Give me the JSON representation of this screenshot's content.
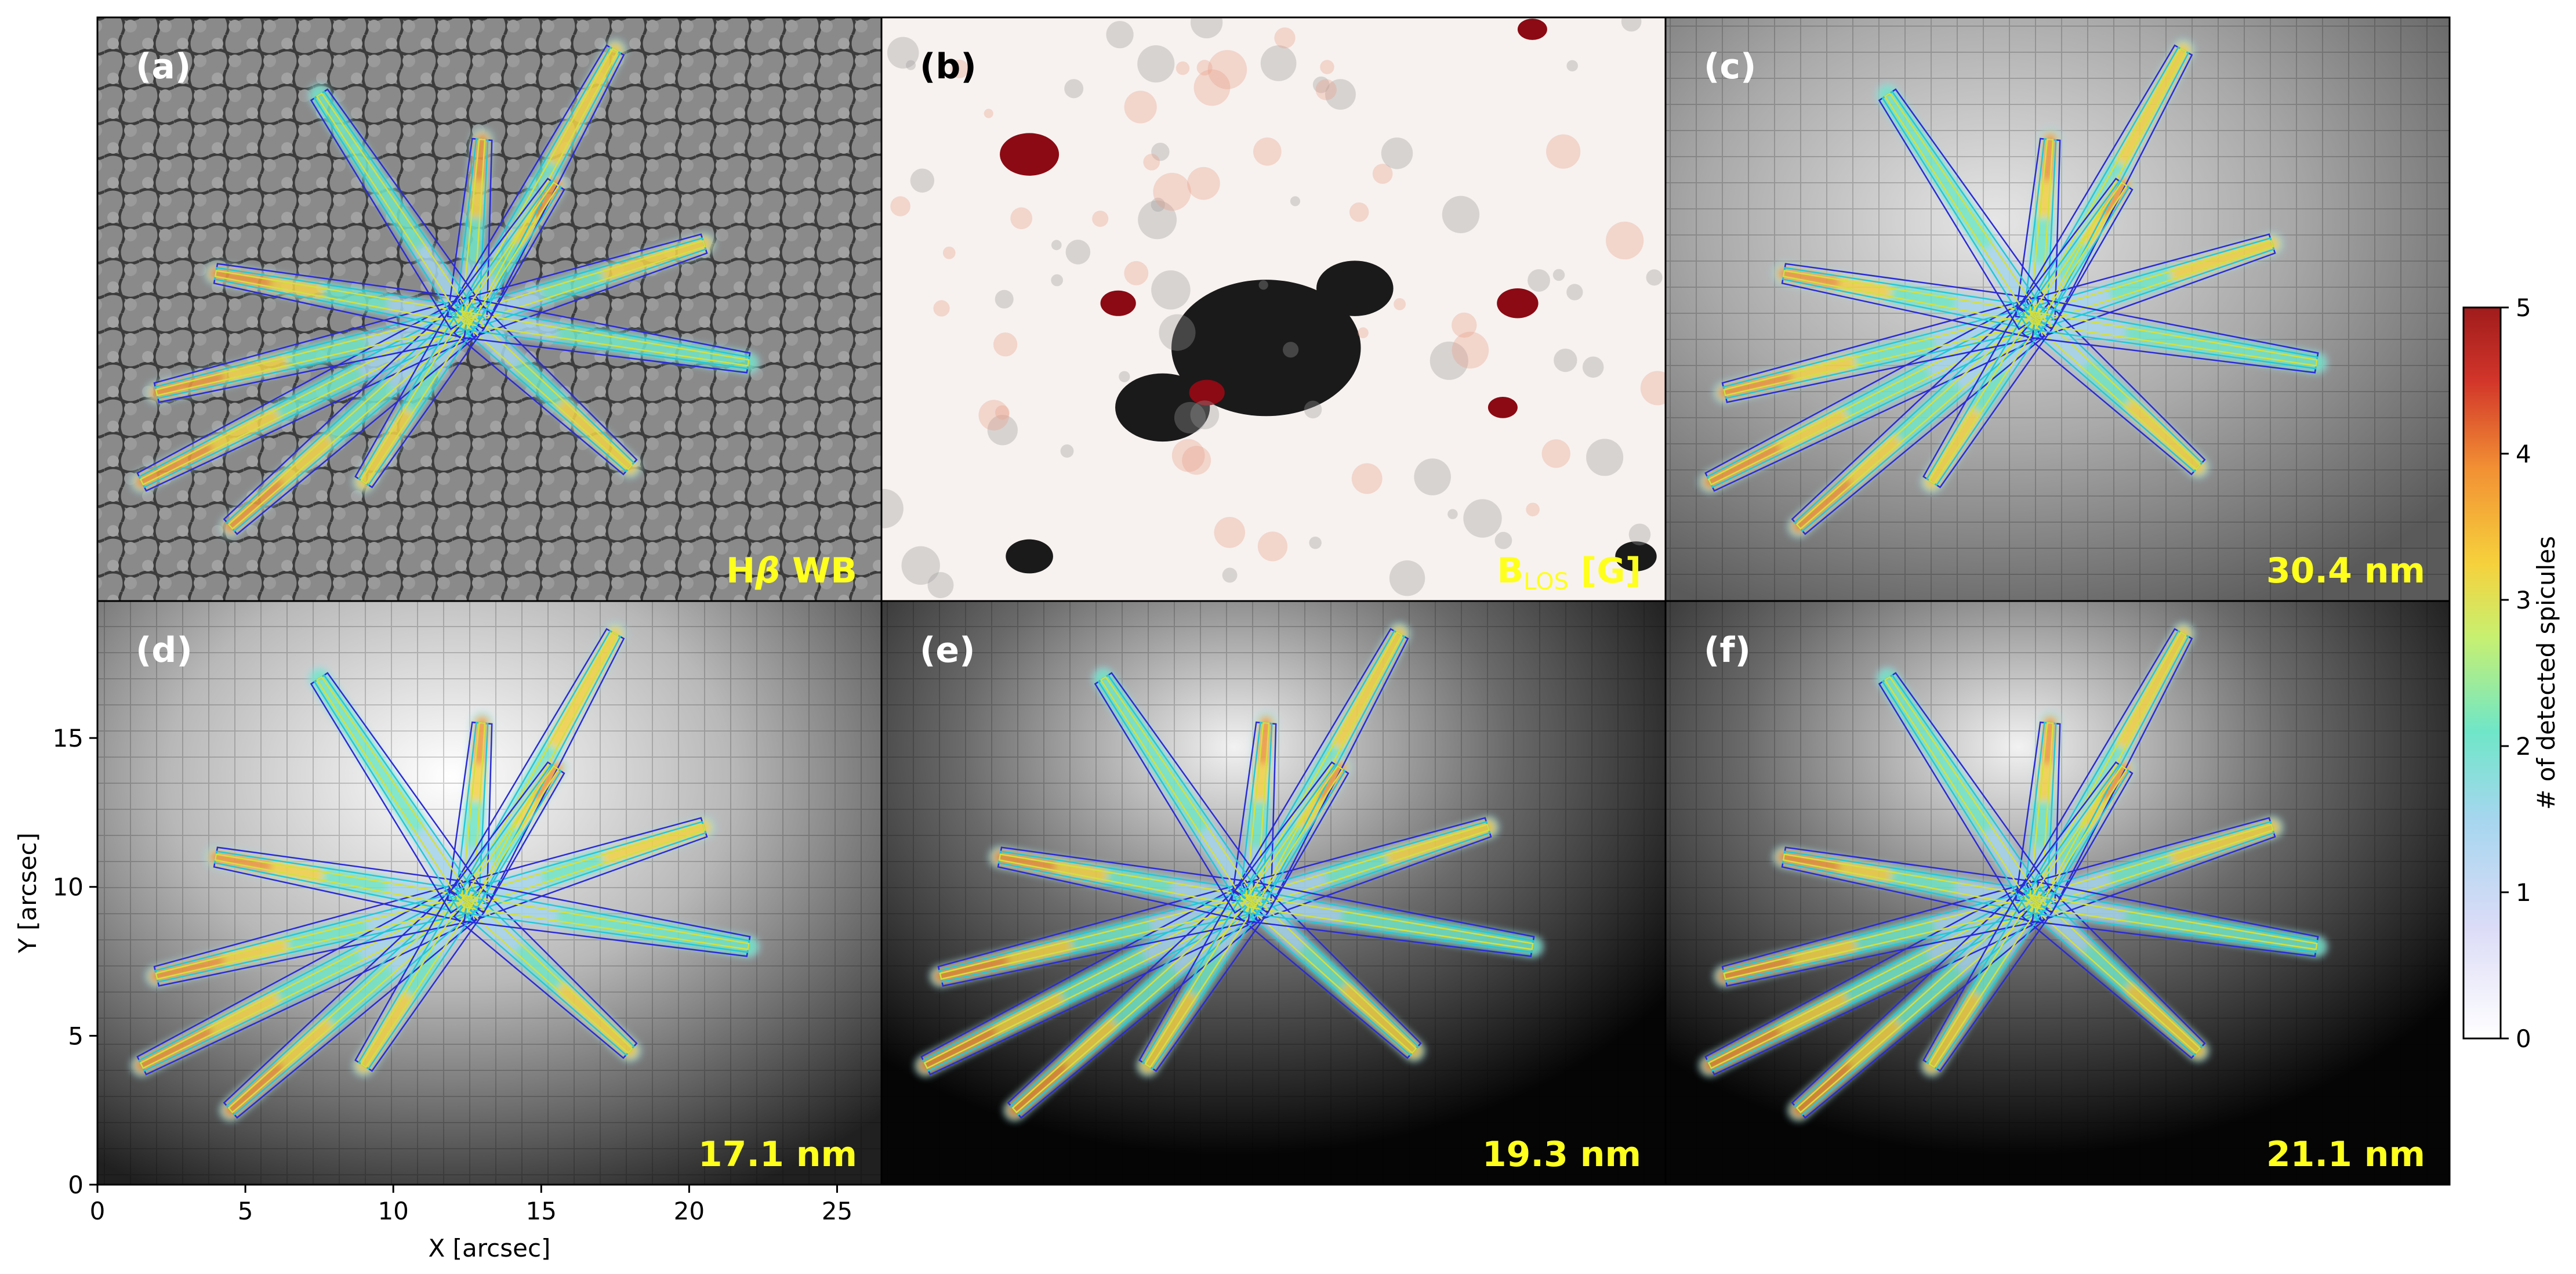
{
  "chart_data": {
    "type": "heatmap",
    "x_axis": {
      "label": "X [arcsec]",
      "ticks": [
        0,
        5,
        10,
        15,
        20,
        25
      ],
      "range": [
        0,
        26.5
      ]
    },
    "y_axis": {
      "label": "Y [arcsec]",
      "ticks": [
        0,
        5,
        10,
        15
      ],
      "range": [
        0,
        19.6
      ]
    },
    "colorbar": {
      "label": "# of detected spicules",
      "ticks": [
        0,
        1,
        2,
        3,
        4,
        5
      ],
      "range": [
        0,
        5
      ],
      "colors": [
        "#ffffff",
        "#dcdcf7",
        "#a6d6ef",
        "#6fe6c8",
        "#c8f070",
        "#f6d13c",
        "#f29034",
        "#d2352a",
        "#a01c1c"
      ]
    },
    "panels": [
      {
        "letter": "(a)",
        "tag": "Hβ WB",
        "tag_main": "H",
        "tag_greek": "β",
        "tag_tail": " WB",
        "background": "granulation",
        "contours": true
      },
      {
        "letter": "(b)",
        "tag": "B_LOS [G]",
        "tag_main": "B",
        "tag_sub": "LOS",
        "tag_tail": " [G]",
        "background": "magnetogram",
        "contours": false
      },
      {
        "letter": "(c)",
        "tag": "30.4 nm",
        "background": "euv-light",
        "contours": true
      },
      {
        "letter": "(d)",
        "tag": "17.1 nm",
        "background": "euv-bright",
        "contours": true
      },
      {
        "letter": "(e)",
        "tag": "19.3 nm",
        "background": "euv-dark",
        "contours": true
      },
      {
        "letter": "(f)",
        "tag": "21.1 nm",
        "background": "euv-dark",
        "contours": true
      }
    ],
    "spicule_rays": [
      {
        "x0": 12.5,
        "y0": 9.5,
        "x1": 1.5,
        "y1": 4.0,
        "peak": 5
      },
      {
        "x0": 12.5,
        "y0": 9.5,
        "x1": 4.5,
        "y1": 2.5,
        "peak": 5
      },
      {
        "x0": 12.5,
        "y0": 9.5,
        "x1": 2.0,
        "y1": 7.0,
        "peak": 4
      },
      {
        "x0": 12.5,
        "y0": 9.5,
        "x1": 4.0,
        "y1": 11.0,
        "peak": 4
      },
      {
        "x0": 12.5,
        "y0": 9.5,
        "x1": 13.0,
        "y1": 15.5,
        "peak": 5
      },
      {
        "x0": 12.5,
        "y0": 9.5,
        "x1": 17.5,
        "y1": 18.5,
        "peak": 3
      },
      {
        "x0": 12.5,
        "y0": 9.5,
        "x1": 20.5,
        "y1": 12.0,
        "peak": 3
      },
      {
        "x0": 12.5,
        "y0": 9.5,
        "x1": 18.0,
        "y1": 4.5,
        "peak": 3
      },
      {
        "x0": 12.5,
        "y0": 9.5,
        "x1": 9.0,
        "y1": 4.0,
        "peak": 3
      },
      {
        "x0": 12.5,
        "y0": 9.5,
        "x1": 7.5,
        "y1": 17.0,
        "peak": 2
      },
      {
        "x0": 12.5,
        "y0": 9.5,
        "x1": 22.0,
        "y1": 8.0,
        "peak": 2
      },
      {
        "x0": 12.5,
        "y0": 9.5,
        "x1": 15.5,
        "y1": 14.0,
        "peak": 4
      }
    ],
    "polarity_patches": [
      {
        "x": 13.0,
        "y": 8.5,
        "r": 3.2,
        "sign": -1
      },
      {
        "x": 9.5,
        "y": 6.5,
        "r": 1.6,
        "sign": -1
      },
      {
        "x": 16.0,
        "y": 10.5,
        "r": 1.3,
        "sign": -1
      },
      {
        "x": 5.0,
        "y": 15.0,
        "r": 1.0,
        "sign": 1
      },
      {
        "x": 8.0,
        "y": 10.0,
        "r": 0.6,
        "sign": 1
      },
      {
        "x": 11.0,
        "y": 7.0,
        "r": 0.6,
        "sign": 1
      },
      {
        "x": 21.5,
        "y": 10.0,
        "r": 0.7,
        "sign": 1
      },
      {
        "x": 21.0,
        "y": 6.5,
        "r": 0.5,
        "sign": 1
      },
      {
        "x": 22.0,
        "y": 19.2,
        "r": 0.5,
        "sign": 1
      },
      {
        "x": 5.0,
        "y": 1.5,
        "r": 0.8,
        "sign": -1
      },
      {
        "x": 25.5,
        "y": 1.5,
        "r": 0.7,
        "sign": -1
      }
    ]
  }
}
